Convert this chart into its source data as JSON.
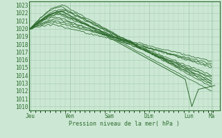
{
  "xlabel": "Pression niveau de la mer( hPa )",
  "ylim": [
    1009.5,
    1023.5
  ],
  "yticks": [
    1010,
    1011,
    1012,
    1013,
    1014,
    1015,
    1016,
    1017,
    1018,
    1019,
    1020,
    1021,
    1022,
    1023
  ],
  "xtick_labels": [
    "Jeu",
    "Ven",
    "Sam",
    "Dim",
    "Lun",
    "Ma"
  ],
  "xtick_pos": [
    0,
    24,
    48,
    72,
    96,
    110
  ],
  "xlim": [
    -1,
    115
  ],
  "line_color": "#2d6a2d",
  "bg_color": "#cce8d4",
  "grid_color": "#aacfb5",
  "total_hours": 112
}
